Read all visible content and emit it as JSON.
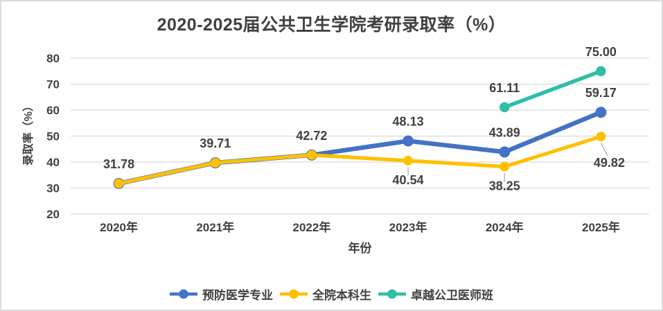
{
  "frame": {
    "background": "#FFFFFF",
    "border_color": "#DBDBDB"
  },
  "chart_data": {
    "type": "line",
    "title": "2020-2025届公共卫生学院考研录取率（%）",
    "xlabel": "年份",
    "ylabel": "录取率（%）",
    "categories": [
      "2020年",
      "2021年",
      "2022年",
      "2023年",
      "2024年",
      "2025年"
    ],
    "ylim": [
      20,
      80
    ],
    "yticks": [
      20,
      30,
      40,
      50,
      60,
      70,
      80
    ],
    "grid": true,
    "legend_position": "bottom",
    "colors": {
      "grid": "#D9D9D9",
      "text": "#404040",
      "leader": "#A6A6A6",
      "title": "#3F3F3F"
    },
    "series": [
      {
        "name": "预防医学专业",
        "color": "#4472C4",
        "values": [
          31.78,
          39.71,
          42.72,
          48.13,
          43.89,
          59.17
        ],
        "point_labels": [
          {
            "text": "31.78",
            "pos": "above"
          },
          {
            "text": "39.71",
            "pos": "above"
          },
          {
            "text": "42.72",
            "pos": "above"
          },
          {
            "text": "48.13",
            "pos": "above"
          },
          {
            "text": "43.89",
            "pos": "above"
          },
          {
            "text": "59.17",
            "pos": "above"
          }
        ]
      },
      {
        "name": "全院本科生",
        "color": "#FFC000",
        "values": [
          31.78,
          39.71,
          42.72,
          40.54,
          38.25,
          49.82
        ],
        "point_labels": [
          null,
          null,
          null,
          {
            "text": "40.54",
            "pos": "below",
            "leader": true
          },
          {
            "text": "38.25",
            "pos": "below",
            "leader": true
          },
          {
            "text": "49.82",
            "pos": "below",
            "leader": true,
            "dx": 12,
            "dy": 10
          }
        ]
      },
      {
        "name": "卓越公卫医师班",
        "color": "#2FBEA6",
        "values": [
          null,
          null,
          null,
          null,
          61.11,
          75.0
        ],
        "point_labels": [
          null,
          null,
          null,
          null,
          {
            "text": "61.11",
            "pos": "above"
          },
          {
            "text": "75.00",
            "pos": "above"
          }
        ]
      }
    ]
  }
}
